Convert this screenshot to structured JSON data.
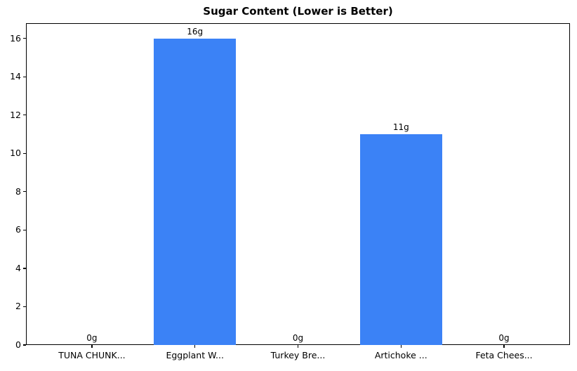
{
  "chart_data": {
    "type": "bar",
    "title": "Sugar Content (Lower is Better)",
    "categories": [
      "TUNA CHUNK...",
      "Eggplant W...",
      "Turkey Bre...",
      "Artichoke ...",
      "Feta Chees..."
    ],
    "values": [
      0,
      16,
      0,
      11,
      0
    ],
    "value_labels": [
      "0g",
      "16g",
      "0g",
      "11g",
      "0g"
    ],
    "yticks": [
      0,
      2,
      4,
      6,
      8,
      10,
      12,
      14,
      16
    ],
    "ylim": [
      0,
      16.8
    ],
    "xlabel": "",
    "ylabel": "",
    "grid": false,
    "legend": null,
    "bar_color": "#3b82f6",
    "axis_color": "#000000",
    "text_color": "#000000",
    "background_color": "#ffffff"
  }
}
